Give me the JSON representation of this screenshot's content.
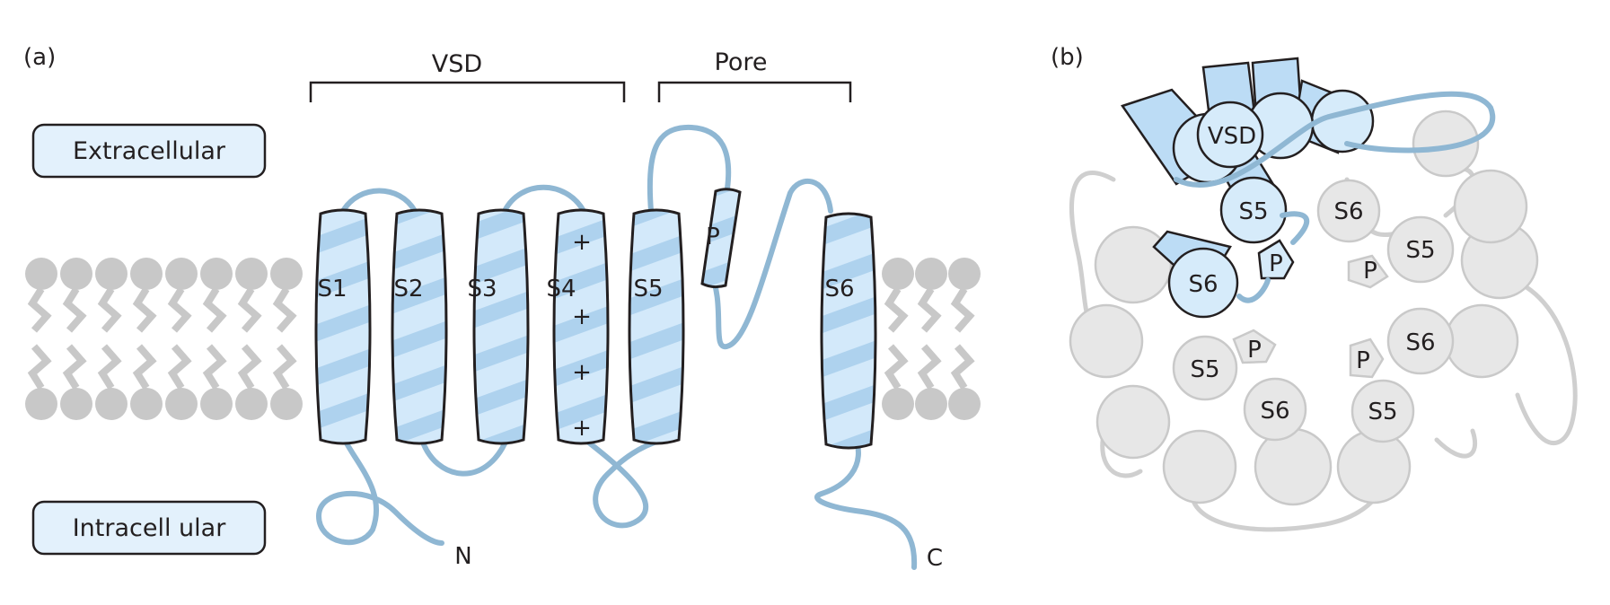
{
  "panel_a": {
    "label": "(a)",
    "extracellular": "Extracellular",
    "intracellular": "Intracell ular",
    "vsd": "VSD",
    "pore": "Pore",
    "segments": [
      "S1",
      "S2",
      "S3",
      "S4",
      "S5",
      "S6"
    ],
    "p_loop": "P",
    "charges": [
      "+",
      "+",
      "+",
      "+"
    ],
    "n_term": "N",
    "c_term": "C"
  },
  "panel_b": {
    "label": "(b)",
    "vsd": "VSD",
    "highlighted": {
      "s5": "S5",
      "s6": "S6",
      "p": "P"
    },
    "subunits": [
      {
        "s5": "S5",
        "s6": "S6",
        "p": "P"
      },
      {
        "s5": "S5",
        "s6": "S6",
        "p": "P"
      },
      {
        "s5": "S5",
        "s6": "S6",
        "p": "P"
      }
    ]
  },
  "colors": {
    "helix_fill": "#bcdcf5",
    "helix_stripe": "#9fc8e6",
    "loop": "#8fb7d3",
    "membrane": "#c8c8c8",
    "ghost": "#e7e7e7"
  }
}
